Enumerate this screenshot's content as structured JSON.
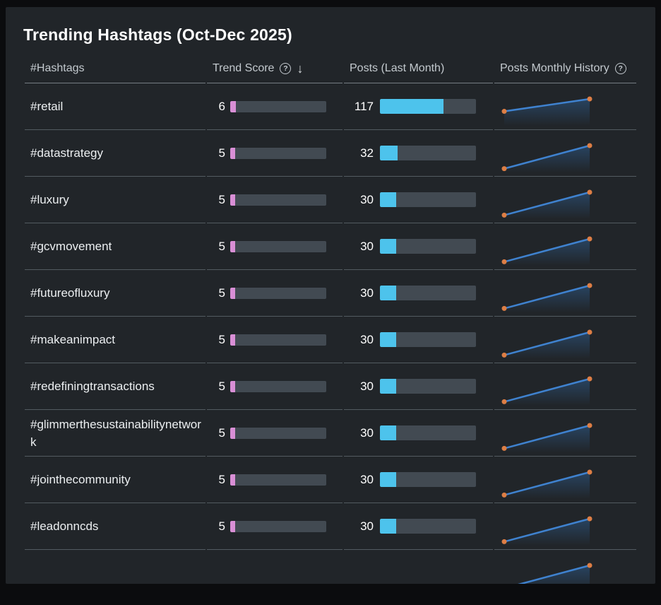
{
  "card": {
    "title": "Trending Hashtags (Oct-Dec 2025)"
  },
  "icons": {
    "help_glyph": "?",
    "sort_desc_glyph": "↓"
  },
  "table": {
    "columns": [
      {
        "label": "#Hashtags"
      },
      {
        "label": "Trend Score",
        "has_help_icon": true,
        "has_sort_icon": true
      },
      {
        "label": "Posts (Last Month)"
      },
      {
        "label": "Posts Monthly History",
        "has_help_icon": true
      }
    ],
    "scales": {
      "trend_score_bar_max": 100,
      "posts_bar_max": 177
    },
    "rows": [
      {
        "hashtag": "#retail",
        "trend_score": 6,
        "posts_last_month": 117,
        "history": [
          60,
          117
        ]
      },
      {
        "hashtag": "#datastrategy",
        "trend_score": 5,
        "posts_last_month": 32,
        "history": [
          3,
          32
        ]
      },
      {
        "hashtag": "#luxury",
        "trend_score": 5,
        "posts_last_month": 30,
        "history": [
          3,
          30
        ]
      },
      {
        "hashtag": "#gcvmovement",
        "trend_score": 5,
        "posts_last_month": 30,
        "history": [
          3,
          30
        ]
      },
      {
        "hashtag": "#futureofluxury",
        "trend_score": 5,
        "posts_last_month": 30,
        "history": [
          3,
          30
        ]
      },
      {
        "hashtag": "#makeanimpact",
        "trend_score": 5,
        "posts_last_month": 30,
        "history": [
          3,
          30
        ]
      },
      {
        "hashtag": "#redefiningtransactions",
        "trend_score": 5,
        "posts_last_month": 30,
        "history": [
          3,
          30
        ]
      },
      {
        "hashtag": "#glimmerthesustainabilitynetwork",
        "trend_score": 5,
        "posts_last_month": 30,
        "history": [
          3,
          30
        ]
      },
      {
        "hashtag": "#jointhecommunity",
        "trend_score": 5,
        "posts_last_month": 30,
        "history": [
          3,
          30
        ]
      },
      {
        "hashtag": "#leadonncds",
        "trend_score": 5,
        "posts_last_month": 30,
        "history": [
          3,
          30
        ]
      },
      {
        "hashtag": "",
        "trend_score": null,
        "posts_last_month": null,
        "history": [
          3,
          30
        ]
      }
    ]
  },
  "colors": {
    "page_background": "#0b0c0e",
    "card_background": "#212529",
    "bar_track": "#424a52",
    "trend_score_fill": "#d98fd6",
    "posts_fill": "#4dc3ec",
    "spark_line": "#3f82cf",
    "spark_point": "#dd7e45",
    "spark_area_top": "#2e5d8f",
    "header_text": "#c3c9ce",
    "row_text": "#eceff1"
  }
}
